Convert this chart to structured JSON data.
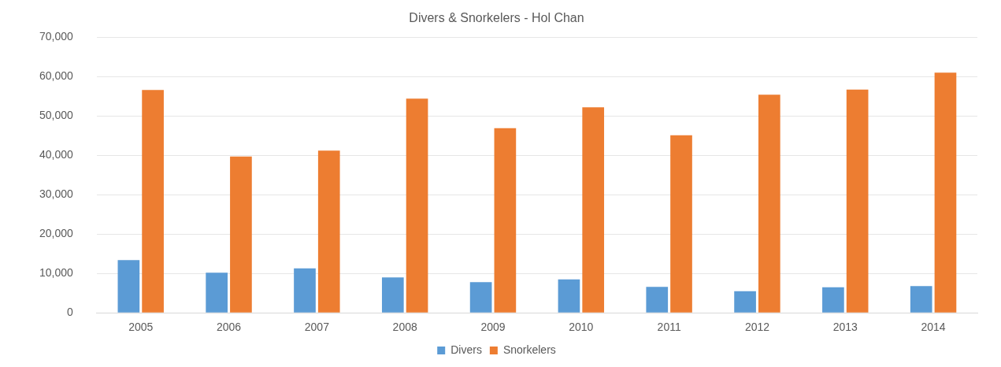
{
  "chart_data": {
    "type": "bar",
    "title": "Divers & Snorkelers - Hol Chan",
    "categories": [
      "2005",
      "2006",
      "2007",
      "2008",
      "2009",
      "2010",
      "2011",
      "2012",
      "2013",
      "2014"
    ],
    "series": [
      {
        "name": "Divers",
        "color": "#5b9bd5",
        "values": [
          13400,
          10200,
          11300,
          9000,
          7800,
          8500,
          6600,
          5500,
          6500,
          6800
        ]
      },
      {
        "name": "Snorkelers",
        "color": "#ed7d31",
        "values": [
          56600,
          39700,
          41200,
          54400,
          46900,
          52200,
          45100,
          55400,
          56700,
          61000
        ]
      }
    ],
    "ylim": [
      0,
      70000
    ],
    "yticks": [
      0,
      {
        "value": 10000,
        "label": "10,000"
      },
      {
        "value": 20000,
        "label": "20,000"
      },
      {
        "value": 30000,
        "label": "30,000"
      },
      {
        "value": 40000,
        "label": "40,000"
      },
      {
        "value": 50000,
        "label": "50,000"
      },
      {
        "value": 60000,
        "label": "60,000"
      },
      {
        "value": 70000,
        "label": "70,000"
      }
    ],
    "grid": "y",
    "legend": "bottom"
  }
}
